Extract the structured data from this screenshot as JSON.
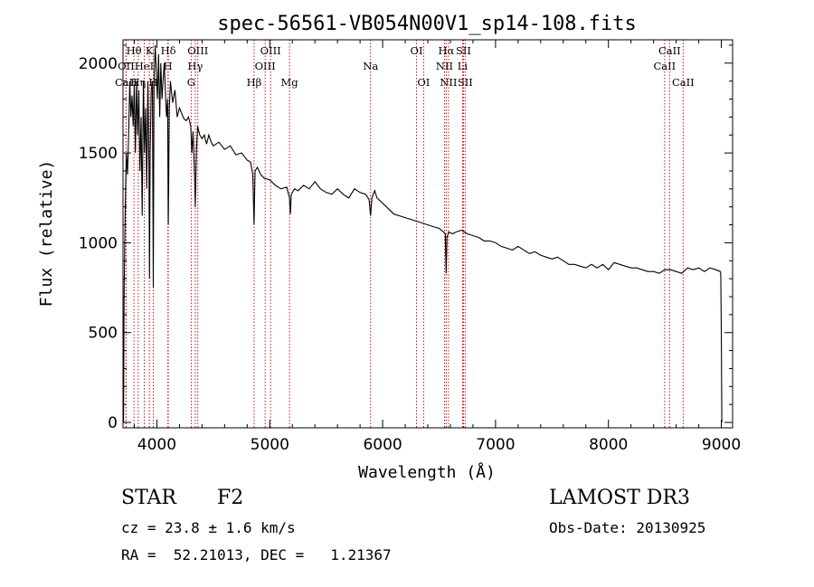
{
  "chart_data": {
    "type": "line",
    "title": "spec-56561-VB054N00V1_sp14-108.fits",
    "xlabel": "Wavelength (Å)",
    "ylabel": "Flux (relative)",
    "xlim": [
      3700,
      9100
    ],
    "ylim": [
      -30,
      2130
    ],
    "xticks": [
      4000,
      5000,
      6000,
      7000,
      8000,
      9000
    ],
    "yticks": [
      0,
      500,
      1000,
      1500,
      2000
    ],
    "grid": false,
    "line_color": "#000000",
    "marker_color": "#c00000",
    "series": [
      {
        "name": "flux",
        "x": [
          3705,
          3710,
          3720,
          3730,
          3740,
          3750,
          3760,
          3770,
          3780,
          3790,
          3800,
          3810,
          3820,
          3830,
          3840,
          3850,
          3860,
          3870,
          3880,
          3890,
          3900,
          3910,
          3920,
          3930,
          3935,
          3940,
          3950,
          3960,
          3968,
          3975,
          3985,
          3995,
          4005,
          4015,
          4025,
          4035,
          4045,
          4055,
          4065,
          4075,
          4085,
          4095,
          4101,
          4110,
          4120,
          4140,
          4160,
          4180,
          4200,
          4220,
          4240,
          4260,
          4280,
          4300,
          4310,
          4320,
          4335,
          4340,
          4350,
          4360,
          4380,
          4400,
          4420,
          4440,
          4460,
          4480,
          4500,
          4550,
          4600,
          4650,
          4700,
          4750,
          4800,
          4830,
          4850,
          4861,
          4870,
          4890,
          4920,
          4950,
          5000,
          5050,
          5100,
          5150,
          5175,
          5183,
          5190,
          5220,
          5250,
          5300,
          5350,
          5400,
          5450,
          5500,
          5550,
          5600,
          5650,
          5700,
          5750,
          5800,
          5850,
          5880,
          5893,
          5905,
          5930,
          5950,
          6000,
          6050,
          6100,
          6150,
          6200,
          6250,
          6300,
          6350,
          6400,
          6450,
          6500,
          6540,
          6555,
          6563,
          6570,
          6585,
          6620,
          6650,
          6700,
          6750,
          6800,
          6850,
          6900,
          6950,
          7000,
          7050,
          7100,
          7150,
          7200,
          7250,
          7300,
          7350,
          7400,
          7450,
          7500,
          7550,
          7600,
          7650,
          7700,
          7750,
          7800,
          7850,
          7900,
          7950,
          8000,
          8050,
          8100,
          8150,
          8200,
          8250,
          8300,
          8350,
          8400,
          8450,
          8500,
          8550,
          8600,
          8650,
          8700,
          8750,
          8800,
          8850,
          8900,
          8950,
          8990,
          8995,
          9000,
          9005
        ],
        "y": [
          0,
          700,
          1200,
          1500,
          1380,
          1600,
          1900,
          1700,
          1820,
          1650,
          1880,
          1500,
          1900,
          1600,
          1850,
          1400,
          1700,
          1150,
          1900,
          1500,
          1750,
          1300,
          1900,
          1400,
          800,
          1500,
          1850,
          1900,
          750,
          1900,
          2100,
          1950,
          1800,
          2050,
          1700,
          2000,
          1800,
          1900,
          2000,
          1850,
          1700,
          1800,
          1100,
          1750,
          1900,
          1780,
          1850,
          1700,
          1750,
          1720,
          1690,
          1680,
          1700,
          1650,
          1500,
          1620,
          1350,
          1200,
          1500,
          1650,
          1600,
          1580,
          1600,
          1550,
          1600,
          1560,
          1540,
          1560,
          1520,
          1540,
          1490,
          1500,
          1460,
          1450,
          1380,
          1100,
          1400,
          1420,
          1380,
          1360,
          1350,
          1320,
          1300,
          1310,
          1250,
          1160,
          1270,
          1300,
          1290,
          1320,
          1300,
          1340,
          1300,
          1280,
          1270,
          1300,
          1270,
          1250,
          1300,
          1280,
          1270,
          1240,
          1150,
          1250,
          1290,
          1250,
          1220,
          1190,
          1160,
          1150,
          1140,
          1130,
          1120,
          1110,
          1100,
          1090,
          1080,
          1060,
          1050,
          830,
          1030,
          1060,
          1050,
          1060,
          1070,
          1050,
          1040,
          1030,
          1010,
          1010,
          1000,
          980,
          970,
          960,
          980,
          960,
          940,
          950,
          930,
          920,
          910,
          920,
          900,
          880,
          880,
          870,
          860,
          880,
          860,
          880,
          850,
          890,
          880,
          870,
          860,
          860,
          850,
          840,
          840,
          830,
          850,
          850,
          840,
          830,
          860,
          850,
          860,
          840,
          860,
          850,
          840,
          830,
          520,
          0
        ]
      }
    ],
    "line_markers": [
      {
        "label": "Hθ",
        "x": 3797,
        "row": 0
      },
      {
        "label": "OII",
        "x": 3727,
        "row": 1
      },
      {
        "label": "CaII",
        "x": 3727,
        "row": 2
      },
      {
        "label": "HeI",
        "x": 3888,
        "row": 1
      },
      {
        "label": "H",
        "x": 3968,
        "row": 2
      },
      {
        "label": "K",
        "x": 3934,
        "row": 0
      },
      {
        "label": "Hη",
        "x": 3835,
        "row": 2
      },
      {
        "label": "Hδ",
        "x": 4101,
        "row": 0
      },
      {
        "label": "H",
        "x": 4098,
        "row": 1
      },
      {
        "label": "OIII",
        "x": 4363,
        "row": 0
      },
      {
        "label": "Hγ",
        "x": 4340,
        "row": 1
      },
      {
        "label": "G",
        "x": 4304,
        "row": 2
      },
      {
        "label": "OIII",
        "x": 5007,
        "row": 0
      },
      {
        "label": "OIII",
        "x": 4959,
        "row": 1
      },
      {
        "label": "Hβ",
        "x": 4861,
        "row": 2
      },
      {
        "label": "Mg",
        "x": 5175,
        "row": 2
      },
      {
        "label": "Na",
        "x": 5893,
        "row": 1
      },
      {
        "label": "OI",
        "x": 6300,
        "row": 0
      },
      {
        "label": "OI",
        "x": 6363,
        "row": 2
      },
      {
        "label": "Hα",
        "x": 6563,
        "row": 0
      },
      {
        "label": "SII",
        "x": 6716,
        "row": 0
      },
      {
        "label": "NII",
        "x": 6548,
        "row": 1
      },
      {
        "label": "Li",
        "x": 6708,
        "row": 1
      },
      {
        "label": "NII",
        "x": 6583,
        "row": 2
      },
      {
        "label": "SII",
        "x": 6731,
        "row": 2
      },
      {
        "label": "CaII",
        "x": 8542,
        "row": 0
      },
      {
        "label": "CaII",
        "x": 8498,
        "row": 1
      },
      {
        "label": "CaII",
        "x": 8662,
        "row": 2
      }
    ]
  },
  "info": {
    "object_type": "STAR",
    "subclass": "F2",
    "survey": "LAMOST DR3",
    "redshift_line": "cz = 23.8 ± 1.6 km/s",
    "obs_date": "Obs-Date: 20130925",
    "coords": "RA =  52.21013, DEC =   1.21367"
  }
}
